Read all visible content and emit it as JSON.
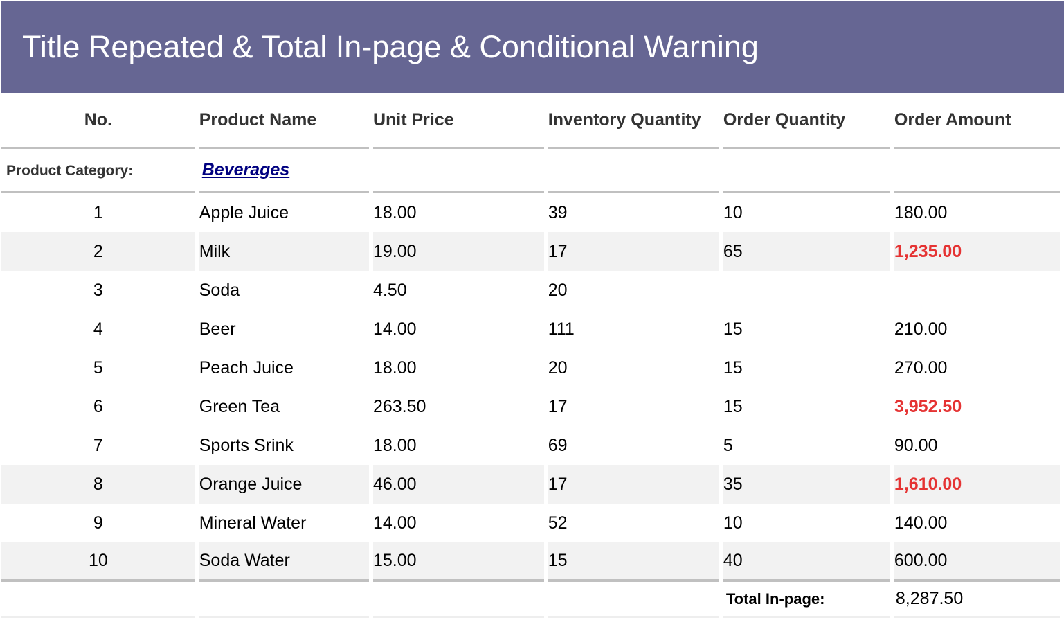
{
  "title": "Title Repeated & Total In-page & Conditional Warning",
  "columns": [
    "No.",
    "Product Name",
    "Unit Price",
    "Inventory Quantity",
    "Order Quantity",
    "Order Amount"
  ],
  "category": {
    "label": "Product Category:",
    "value": "Beverages"
  },
  "rows": [
    {
      "no": "1",
      "name": "Apple Juice",
      "price": "18.00",
      "inventory": "39",
      "order_qty": "10",
      "amount": "180.00",
      "warning": false,
      "alt": false
    },
    {
      "no": "2",
      "name": "Milk",
      "price": "19.00",
      "inventory": "17",
      "order_qty": "65",
      "amount": "1,235.00",
      "warning": true,
      "alt": true
    },
    {
      "no": "3",
      "name": "Soda",
      "price": "4.50",
      "inventory": "20",
      "order_qty": "",
      "amount": "",
      "warning": false,
      "alt": false
    },
    {
      "no": "4",
      "name": "Beer",
      "price": "14.00",
      "inventory": "111",
      "order_qty": "15",
      "amount": "210.00",
      "warning": false,
      "alt": false
    },
    {
      "no": "5",
      "name": "Peach Juice",
      "price": "18.00",
      "inventory": "20",
      "order_qty": "15",
      "amount": "270.00",
      "warning": false,
      "alt": false
    },
    {
      "no": "6",
      "name": "Green Tea",
      "price": "263.50",
      "inventory": "17",
      "order_qty": "15",
      "amount": "3,952.50",
      "warning": true,
      "alt": false
    },
    {
      "no": "7",
      "name": "Sports Srink",
      "price": "18.00",
      "inventory": "69",
      "order_qty": "5",
      "amount": "90.00",
      "warning": false,
      "alt": false
    },
    {
      "no": "8",
      "name": "Orange Juice",
      "price": "46.00",
      "inventory": "17",
      "order_qty": "35",
      "amount": "1,610.00",
      "warning": true,
      "alt": true
    },
    {
      "no": "9",
      "name": "Mineral Water",
      "price": "14.00",
      "inventory": "52",
      "order_qty": "10",
      "amount": "140.00",
      "warning": false,
      "alt": false
    },
    {
      "no": "10",
      "name": "Soda Water",
      "price": "15.00",
      "inventory": "15",
      "order_qty": "40",
      "amount": "600.00",
      "warning": false,
      "alt": true
    }
  ],
  "total": {
    "label": "Total In-page:",
    "value": "8,287.50"
  },
  "colors": {
    "title_bg": "#666693",
    "warning": "#e53333",
    "link": "#000080",
    "alt_row": "#f2f2f2",
    "rule": "#c0c0c0"
  }
}
